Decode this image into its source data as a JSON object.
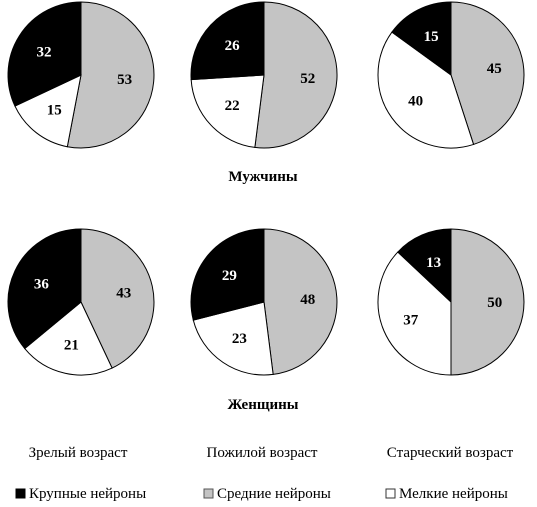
{
  "chart_data": {
    "type": "pie",
    "age_groups": [
      "Зрелый возраст",
      "Пожилой возраст",
      "Старческий возраст"
    ],
    "legend": [
      {
        "key": "large",
        "name": "Крупные нейроны",
        "color": "#000000",
        "text_color": "#ffffff"
      },
      {
        "key": "medium",
        "name": "Средние нейроны",
        "color": "#c4c4c4",
        "text_color": "#000000"
      },
      {
        "key": "small",
        "name": "Мелкие нейроны",
        "color": "#ffffff",
        "text_color": "#000000"
      }
    ],
    "groups": [
      {
        "title": "Мужчины",
        "pies": [
          {
            "large": 32,
            "medium": 53,
            "small": 15
          },
          {
            "large": 26,
            "medium": 52,
            "small": 22
          },
          {
            "large": 15,
            "medium": 45,
            "small": 40
          }
        ]
      },
      {
        "title": "Женщины",
        "pies": [
          {
            "large": 36,
            "medium": 43,
            "small": 21
          },
          {
            "large": 29,
            "medium": 48,
            "small": 23
          },
          {
            "large": 13,
            "medium": 50,
            "small": 37
          }
        ]
      }
    ]
  }
}
